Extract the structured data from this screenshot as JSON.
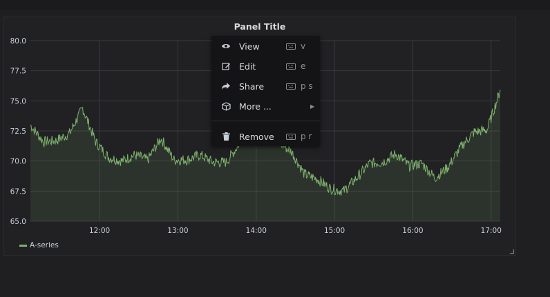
{
  "panel": {
    "title": "Panel Title",
    "legend": {
      "series_name": "A-series",
      "color": "#7eb26d"
    }
  },
  "context_menu": {
    "items": [
      {
        "label": "View",
        "shortcut": "v",
        "icon": "eye-icon"
      },
      {
        "label": "Edit",
        "shortcut": "e",
        "icon": "edit-icon"
      },
      {
        "label": "Share",
        "shortcut": "p s",
        "icon": "share-icon"
      },
      {
        "label": "More ...",
        "shortcut": "",
        "icon": "cube-icon",
        "submenu": true
      },
      {
        "label": "Remove",
        "shortcut": "p r",
        "icon": "trash-icon"
      }
    ]
  },
  "chart_data": {
    "type": "area",
    "title": "Panel Title",
    "xlabel": "",
    "ylabel": "",
    "ylim": [
      65,
      80
    ],
    "y_ticks": [
      "65.0",
      "67.5",
      "70.0",
      "72.5",
      "75.0",
      "77.5",
      "80.0"
    ],
    "x_ticks": [
      "12:00",
      "13:00",
      "14:00",
      "15:00",
      "16:00",
      "17:00"
    ],
    "grid": true,
    "legend": "bottom-left",
    "series": [
      {
        "name": "A-series",
        "color": "#7eb26d",
        "x": [
          "11:07",
          "11:17",
          "11:27",
          "11:37",
          "11:47",
          "11:57",
          "12:07",
          "12:17",
          "12:27",
          "12:37",
          "12:47",
          "12:57",
          "13:07",
          "13:17",
          "13:27",
          "13:37",
          "13:47",
          "13:57",
          "14:07",
          "14:17",
          "14:27",
          "14:37",
          "14:47",
          "14:57",
          "15:07",
          "15:17",
          "15:27",
          "15:37",
          "15:47",
          "15:57",
          "16:07",
          "16:17",
          "16:27",
          "16:37",
          "16:47",
          "16:57",
          "17:07"
        ],
        "values": [
          73.0,
          71.6,
          71.7,
          72.3,
          74.4,
          71.6,
          70.3,
          70.0,
          70.5,
          70.1,
          71.9,
          70.1,
          70.1,
          70.5,
          69.9,
          69.9,
          71.4,
          73.0,
          73.1,
          71.5,
          70.8,
          68.9,
          68.5,
          67.7,
          67.5,
          68.6,
          69.8,
          69.9,
          70.6,
          69.6,
          69.8,
          68.6,
          69.5,
          71.2,
          72.4,
          72.6,
          75.9
        ]
      }
    ]
  }
}
